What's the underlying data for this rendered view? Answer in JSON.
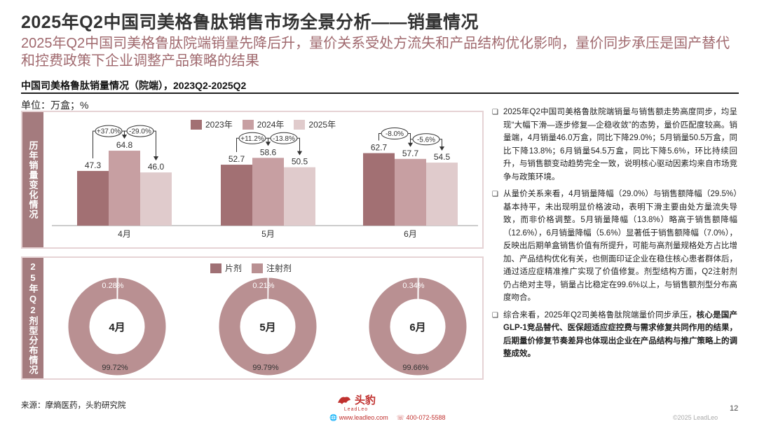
{
  "page": {
    "title": "2025年Q2中国司美格鲁肽销售市场全景分析——销量情况",
    "subtitle": "2025年Q2中国司美格鲁肽院端销量先降后升，量价关系受处方流失和产品结构优化影响，量价同步承压是国产替代和控费政策下企业调整产品策略的结果",
    "chart_title": "中国司美格鲁肽销量情况（院端），2023Q2-2025Q2",
    "unit": "单位：万盒；%",
    "source": "来源：摩熵医药，头豹研究院",
    "page_number": "12",
    "website": "www.leadleo.com",
    "phone": "400-072-5588",
    "copyright": "©2025 LeadLeo",
    "logo_text": "头豹",
    "logo_sub": "LeadLeo"
  },
  "colors": {
    "c2023": "#A27073",
    "c2024": "#C79FA2",
    "c2025": "#E0CBCC",
    "injection": "#B99092",
    "tablet": "#9F7074",
    "accent": "#A0696E",
    "side": "#A47B7E"
  },
  "panel_bar": {
    "side_label": "历年销量变化情况"
  },
  "panel_donut": {
    "side_label": "25年Q2剂型分布情况"
  },
  "chart_data": [
    {
      "type": "bar",
      "title": "历年销量变化情况",
      "categories": [
        "4月",
        "5月",
        "6月"
      ],
      "series": [
        {
          "name": "2023年",
          "values": [
            47.3,
            52.7,
            62.7
          ]
        },
        {
          "name": "2024年",
          "values": [
            64.8,
            58.6,
            57.7
          ]
        },
        {
          "name": "2025年",
          "values": [
            46.0,
            50.5,
            54.5
          ]
        }
      ],
      "annotations": [
        [
          "+37.0%",
          "-29.0%"
        ],
        [
          "+11.2%",
          "-13.8%"
        ],
        [
          "-8.0%",
          "-5.6%"
        ]
      ],
      "ylim": [
        0,
        80
      ]
    },
    {
      "type": "pie",
      "title": "25年Q2剂型分布情况",
      "legend": [
        "片剂",
        "注射剂"
      ],
      "charts": [
        {
          "label": "4月",
          "tablet": 0.28,
          "injection": 99.72,
          "tablet_label": "0.28%",
          "injection_label": "99.72%"
        },
        {
          "label": "5月",
          "tablet": 0.21,
          "injection": 99.79,
          "tablet_label": "0.21%",
          "injection_label": "99.79%"
        },
        {
          "label": "6月",
          "tablet": 0.34,
          "injection": 99.66,
          "tablet_label": "0.34%",
          "injection_label": "99.66%"
        }
      ]
    }
  ],
  "bullets": [
    {
      "text": "2025年Q2中国司美格鲁肽院端销量与销售额走势高度同步，均呈现“大幅下滑—逐步修复—企稳收敛”的态势，量价匹配度较高。销量端，4月销量46.0万盒，同比下降29.0%；5月销量50.5万盒，同比下降13.8%；6月销量54.5万盒，同比下降5.6%，环比持续回升，与销售额变动趋势完全一致，说明核心驱动因素均来自市场竞争与政策环境。"
    },
    {
      "text": "从量价关系来看，4月销量降幅（29.0%）与销售额降幅（29.5%）基本持平，未出现明显价格波动，表明下滑主要由处方量流失导致，而非价格调整。5月销量降幅（13.8%）略高于销售额降幅（12.6%），6月销量降幅（5.6%）显著低于销售额降幅（7.0%），反映出后期单盒销售价值有所提升，可能与高剂量规格处方占比增加、产品结构优化有关，也侧面印证企业在稳住核心患者群体后，通过适应症精准推广实现了价值修复。剂型结构方面，Q2注射剂仍占绝对主导，销量占比稳定在99.6%以上，与销售额剂型分布高度吻合。"
    },
    {
      "text_normal": "综合来看，2025年Q2司美格鲁肽院端量价同步承压，",
      "text_bold": "核心是国产GLP-1竞品替代、医保超适应症控费与需求修复共同作用的结果，后期量价修复节奏差异也体现出企业在产品结构与推广策略上的调整成效。"
    }
  ],
  "bullet_marker": "❑"
}
